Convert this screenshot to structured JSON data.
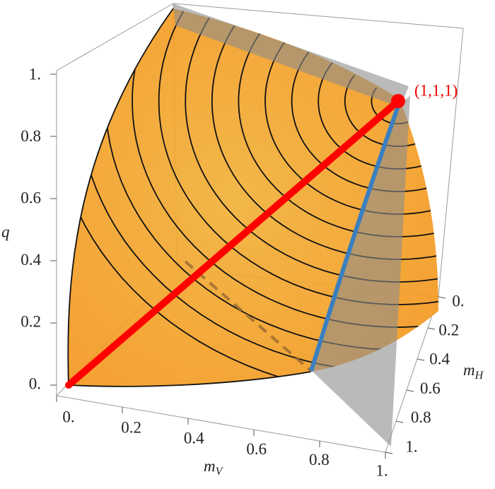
{
  "chart_data": {
    "type": "surface3d",
    "annotation": "(1,1,1)",
    "x_label": {
      "base": "m",
      "sub": "V"
    },
    "y_label": {
      "base": "m",
      "sub": "H"
    },
    "z_label": "q",
    "color": "#f39a22",
    "xlim": [
      0,
      1
    ],
    "xticks": [
      {
        "value": 0,
        "label": "0."
      },
      0.2,
      0.4,
      0.6,
      0.8,
      {
        "value": 1,
        "label": "1."
      }
    ],
    "ylim": [
      0,
      1
    ],
    "yticks": [
      {
        "value": 0,
        "label": "0."
      },
      0.2,
      0.4,
      0.6,
      0.8,
      {
        "value": 1,
        "label": "1."
      }
    ],
    "zlim": [
      0,
      1
    ],
    "zticks": [
      {
        "value": 0,
        "label": "0."
      },
      0.2,
      0.4,
      0.6,
      0.8,
      {
        "value": 1,
        "label": "1."
      }
    ]
  }
}
